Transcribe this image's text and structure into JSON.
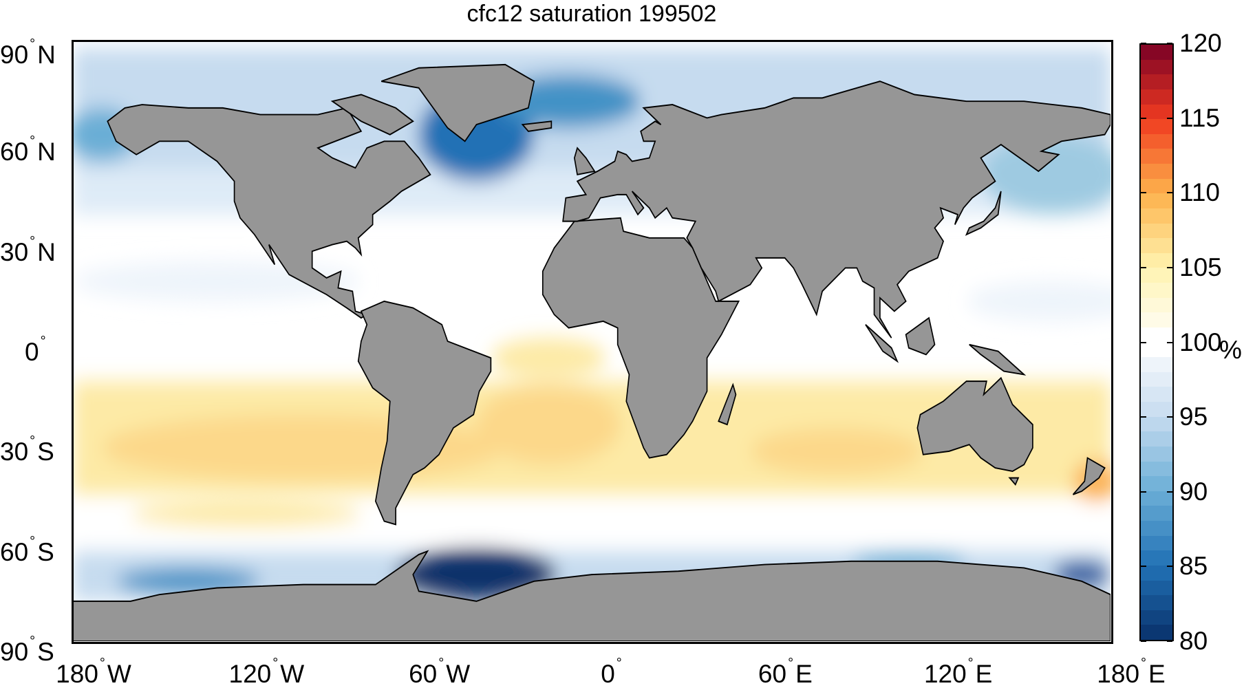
{
  "title": "cfc12 saturation 199502",
  "colors": {
    "land": "#969696",
    "coast": "#000000",
    "ocean_neutral": "#ffffff",
    "super": "#fde9a0",
    "super_strong": "#fbc96a",
    "under_light": "#c6dbef",
    "under": "#6baed6",
    "under_strong": "#08519c"
  },
  "lat_labels": [
    {
      "value": "90",
      "hemi": "N",
      "lat": 90
    },
    {
      "value": "60",
      "hemi": "N",
      "lat": 60
    },
    {
      "value": "30",
      "hemi": "N",
      "lat": 30
    },
    {
      "value": "0",
      "hemi": "",
      "lat": 0
    },
    {
      "value": "30",
      "hemi": "S",
      "lat": -30
    },
    {
      "value": "60",
      "hemi": "S",
      "lat": -60
    },
    {
      "value": "90",
      "hemi": "S",
      "lat": -90
    }
  ],
  "lon_labels": [
    {
      "value": "180",
      "hemi": "W",
      "lon": -180
    },
    {
      "value": "120",
      "hemi": "W",
      "lon": -120
    },
    {
      "value": "60",
      "hemi": "W",
      "lon": -60
    },
    {
      "value": "0",
      "hemi": "",
      "lon": 0
    },
    {
      "value": "60",
      "hemi": "E",
      "lon": 60
    },
    {
      "value": "120",
      "hemi": "E",
      "lon": 120
    },
    {
      "value": "180",
      "hemi": "E",
      "lon": 180
    }
  ],
  "colorbar": {
    "min": 80,
    "max": 120,
    "levels": 40,
    "ticks": [
      "120",
      "115",
      "110",
      "105",
      "100",
      "95",
      "90",
      "85",
      "80"
    ],
    "unit": "%",
    "stops": [
      "#08306b",
      "#2171b5",
      "#6baed6",
      "#c6dbef",
      "#ffffff",
      "#fff3b0",
      "#fdb24c",
      "#f03b20",
      "#7a0026"
    ]
  }
}
